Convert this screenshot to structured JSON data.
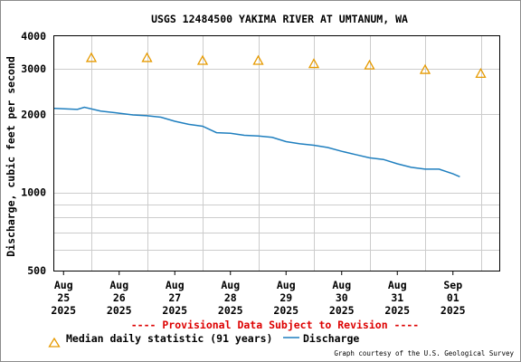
{
  "chart_data": {
    "type": "line",
    "title": "USGS 12484500 YAKIMA RIVER AT UMTANUM, WA",
    "ylabel": "Discharge, cubic feet per second",
    "xlabel": "",
    "yscale": "log",
    "ylim": [
      500,
      4000
    ],
    "ytick_labels": [
      "500",
      "1000",
      "2000",
      "3000",
      "4000"
    ],
    "x_ticks": [
      {
        "date": "2025-08-25",
        "lines": [
          "Aug",
          "25",
          "2025"
        ]
      },
      {
        "date": "2025-08-26",
        "lines": [
          "Aug",
          "26",
          "2025"
        ]
      },
      {
        "date": "2025-08-27",
        "lines": [
          "Aug",
          "27",
          "2025"
        ]
      },
      {
        "date": "2025-08-28",
        "lines": [
          "Aug",
          "28",
          "2025"
        ]
      },
      {
        "date": "2025-08-29",
        "lines": [
          "Aug",
          "29",
          "2025"
        ]
      },
      {
        "date": "2025-08-30",
        "lines": [
          "Aug",
          "30",
          "2025"
        ]
      },
      {
        "date": "2025-08-31",
        "lines": [
          "Aug",
          "31",
          "2025"
        ]
      },
      {
        "date": "2025-09-01",
        "lines": [
          "Sep",
          "01",
          "2025"
        ]
      }
    ],
    "xlim": [
      "2025-08-24T20:00",
      "2025-09-01T20:00"
    ],
    "grid": true,
    "legend_position": "bottom",
    "series": [
      {
        "name": "Median daily statistic (91 years)",
        "marker": "triangle",
        "color": "#e69a00",
        "points": [
          {
            "x": "2025-08-25T12:00",
            "y": 3300
          },
          {
            "x": "2025-08-26T12:00",
            "y": 3300
          },
          {
            "x": "2025-08-27T12:00",
            "y": 3220
          },
          {
            "x": "2025-08-28T12:00",
            "y": 3220
          },
          {
            "x": "2025-08-29T12:00",
            "y": 3130
          },
          {
            "x": "2025-08-30T12:00",
            "y": 3090
          },
          {
            "x": "2025-08-31T12:00",
            "y": 2970
          },
          {
            "x": "2025-09-01T12:00",
            "y": 2870
          }
        ]
      },
      {
        "name": "Discharge",
        "color": "#1f7fbf",
        "points": [
          {
            "x": "2025-08-24T20:00",
            "y": 2110
          },
          {
            "x": "2025-08-25T06:00",
            "y": 2090
          },
          {
            "x": "2025-08-25T09:00",
            "y": 2130
          },
          {
            "x": "2025-08-25T16:00",
            "y": 2060
          },
          {
            "x": "2025-08-26T00:00",
            "y": 2020
          },
          {
            "x": "2025-08-26T06:00",
            "y": 1990
          },
          {
            "x": "2025-08-26T12:00",
            "y": 1975
          },
          {
            "x": "2025-08-26T18:00",
            "y": 1950
          },
          {
            "x": "2025-08-27T00:00",
            "y": 1880
          },
          {
            "x": "2025-08-27T06:00",
            "y": 1830
          },
          {
            "x": "2025-08-27T12:00",
            "y": 1800
          },
          {
            "x": "2025-08-27T18:00",
            "y": 1700
          },
          {
            "x": "2025-08-28T00:00",
            "y": 1690
          },
          {
            "x": "2025-08-28T06:00",
            "y": 1660
          },
          {
            "x": "2025-08-28T12:00",
            "y": 1650
          },
          {
            "x": "2025-08-28T18:00",
            "y": 1630
          },
          {
            "x": "2025-08-29T00:00",
            "y": 1570
          },
          {
            "x": "2025-08-29T06:00",
            "y": 1540
          },
          {
            "x": "2025-08-29T12:00",
            "y": 1520
          },
          {
            "x": "2025-08-29T18:00",
            "y": 1490
          },
          {
            "x": "2025-08-30T00:00",
            "y": 1440
          },
          {
            "x": "2025-08-30T06:00",
            "y": 1400
          },
          {
            "x": "2025-08-30T12:00",
            "y": 1360
          },
          {
            "x": "2025-08-30T18:00",
            "y": 1340
          },
          {
            "x": "2025-08-31T00:00",
            "y": 1290
          },
          {
            "x": "2025-08-31T06:00",
            "y": 1250
          },
          {
            "x": "2025-08-31T12:00",
            "y": 1230
          },
          {
            "x": "2025-08-31T18:00",
            "y": 1230
          },
          {
            "x": "2025-09-01T00:00",
            "y": 1180
          },
          {
            "x": "2025-09-01T03:00",
            "y": 1150
          }
        ]
      }
    ]
  },
  "notice": "---- Provisional Data Subject to Revision ----",
  "credit": "Graph courtesy of the U.S. Geological Survey",
  "colors": {
    "grid": "#cccccc",
    "axis": "#000000",
    "notice": "#dd0000"
  }
}
